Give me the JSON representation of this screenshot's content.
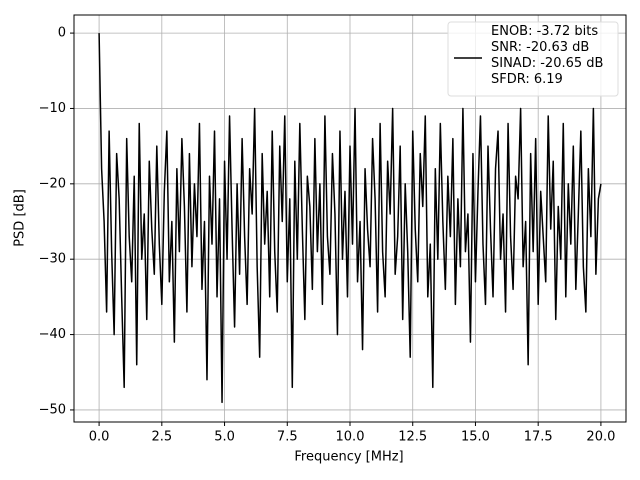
{
  "chart_data": {
    "type": "line",
    "xlabel": "Frequency [MHz]",
    "ylabel": "PSD [dB]",
    "xlim": [
      -1.0,
      21.0
    ],
    "ylim": [
      -51.6,
      2.4
    ],
    "xticks": [
      {
        "value": 0,
        "label": "0.0"
      },
      2.5,
      {
        "value": 5,
        "label": "5.0"
      },
      7.5,
      {
        "value": 10,
        "label": "10.0"
      },
      12.5,
      {
        "value": 15,
        "label": "15.0"
      },
      17.5,
      {
        "value": 20,
        "label": "20.0"
      }
    ],
    "yticks": [
      0,
      {
        "value": -10,
        "label": "−10"
      },
      {
        "value": -20,
        "label": "−20"
      },
      {
        "value": -30,
        "label": "−30"
      },
      {
        "value": -40,
        "label": "−40"
      },
      {
        "value": -50,
        "label": "−50"
      }
    ],
    "grid": true,
    "legend": "upper right",
    "x": [
      0,
      0.1,
      0.2,
      0.3,
      0.4,
      0.5,
      0.6,
      0.7,
      0.8,
      0.9,
      1,
      1.1,
      1.2,
      1.3,
      1.4,
      1.5,
      1.6,
      1.7,
      1.8,
      1.9,
      2,
      2.1,
      2.2,
      2.3,
      2.4,
      2.5,
      2.6,
      2.7,
      2.8,
      2.9,
      3,
      3.1,
      3.2,
      3.3,
      3.4,
      3.5,
      3.6,
      3.7,
      3.8,
      3.9,
      4,
      4.1,
      4.2,
      4.3,
      4.4,
      4.5,
      4.6,
      4.7,
      4.8,
      4.9,
      5,
      5.1,
      5.2,
      5.3,
      5.4,
      5.5,
      5.6,
      5.7,
      5.8,
      5.9,
      6,
      6.1,
      6.2,
      6.3,
      6.4,
      6.5,
      6.6,
      6.7,
      6.8,
      6.9,
      7,
      7.1,
      7.2,
      7.3,
      7.4,
      7.5,
      7.6,
      7.7,
      7.8,
      7.9,
      8,
      8.1,
      8.2,
      8.3,
      8.4,
      8.5,
      8.6,
      8.7,
      8.8,
      8.9,
      9,
      9.1,
      9.2,
      9.3,
      9.4,
      9.5,
      9.6,
      9.7,
      9.8,
      9.9,
      10,
      10.1,
      10.2,
      10.3,
      10.4,
      10.5,
      10.6,
      10.7,
      10.8,
      10.9,
      11,
      11.1,
      11.2,
      11.3,
      11.4,
      11.5,
      11.6,
      11.7,
      11.8,
      11.9,
      12,
      12.1,
      12.2,
      12.3,
      12.4,
      12.5,
      12.6,
      12.7,
      12.8,
      12.9,
      13,
      13.1,
      13.2,
      13.3,
      13.4,
      13.5,
      13.6,
      13.7,
      13.8,
      13.9,
      14,
      14.1,
      14.2,
      14.3,
      14.4,
      14.5,
      14.6,
      14.7,
      14.8,
      14.9,
      15,
      15.1,
      15.2,
      15.3,
      15.4,
      15.5,
      15.6,
      15.7,
      15.8,
      15.9,
      16,
      16.1,
      16.2,
      16.3,
      16.4,
      16.5,
      16.6,
      16.7,
      16.8,
      16.9,
      17,
      17.1,
      17.2,
      17.3,
      17.4,
      17.5,
      17.6,
      17.7,
      17.8,
      17.9,
      18,
      18.1,
      18.2,
      18.3,
      18.4,
      18.5,
      18.6,
      18.7,
      18.8,
      18.9,
      19,
      19.1,
      19.2,
      19.3,
      19.4,
      19.5,
      19.6,
      19.7,
      19.8,
      19.9,
      20
    ],
    "series": [
      {
        "name": "ENOB: -3.72 bits\nSNR: -20.63 dB\nSINAD: -20.65 dB\nSFDR: 6.19",
        "color": "#000000",
        "values": [
          0,
          -18,
          -25,
          -37,
          -13,
          -29,
          -40,
          -16,
          -22,
          -35,
          -47,
          -14,
          -27,
          -33,
          -19,
          -44,
          -12,
          -30,
          -24,
          -38,
          -17,
          -26,
          -32,
          -15,
          -28,
          -36,
          -21,
          -13,
          -33,
          -25,
          -41,
          -18,
          -29,
          -14,
          -23,
          -37,
          -16,
          -31,
          -20,
          -27,
          -12,
          -34,
          -25,
          -46,
          -19,
          -28,
          -13,
          -35,
          -22,
          -49,
          -17,
          -30,
          -11,
          -26,
          -39,
          -20,
          -32,
          -14,
          -27,
          -36,
          -18,
          -24,
          -10,
          -31,
          -43,
          -16,
          -28,
          -21,
          -35,
          -13,
          -29,
          -37,
          -15,
          -25,
          -11,
          -33,
          -22,
          -47,
          -17,
          -30,
          -12,
          -26,
          -38,
          -19,
          -23,
          -34,
          -14,
          -29,
          -20,
          -36,
          -11,
          -27,
          -32,
          -16,
          -24,
          -40,
          -13,
          -30,
          -21,
          -35,
          -15,
          -28,
          -10,
          -33,
          -25,
          -42,
          -18,
          -26,
          -31,
          -14,
          -22,
          -37,
          -12,
          -29,
          -35,
          -17,
          -24,
          -10,
          -32,
          -27,
          -15,
          -38,
          -20,
          -29,
          -43,
          -13,
          -26,
          -33,
          -16,
          -23,
          -11,
          -35,
          -28,
          -47,
          -18,
          -30,
          -12,
          -25,
          -34,
          -19,
          -27,
          -14,
          -36,
          -22,
          -31,
          -10,
          -29,
          -24,
          -41,
          -16,
          -33,
          -21,
          -11,
          -28,
          -36,
          -15,
          -26,
          -35,
          -18,
          -13,
          -30,
          -24,
          -37,
          -12,
          -27,
          -34,
          -19,
          -22,
          -10,
          -31,
          -25,
          -44,
          -16,
          -29,
          -14,
          -36,
          -21,
          -27,
          -33,
          -11,
          -26,
          -17,
          -38,
          -23,
          -30,
          -12,
          -35,
          -20,
          -28,
          -15,
          -34,
          -24,
          -13,
          -31,
          -37,
          -18,
          -27,
          -10,
          -32,
          -22,
          -20
        ]
      }
    ]
  }
}
